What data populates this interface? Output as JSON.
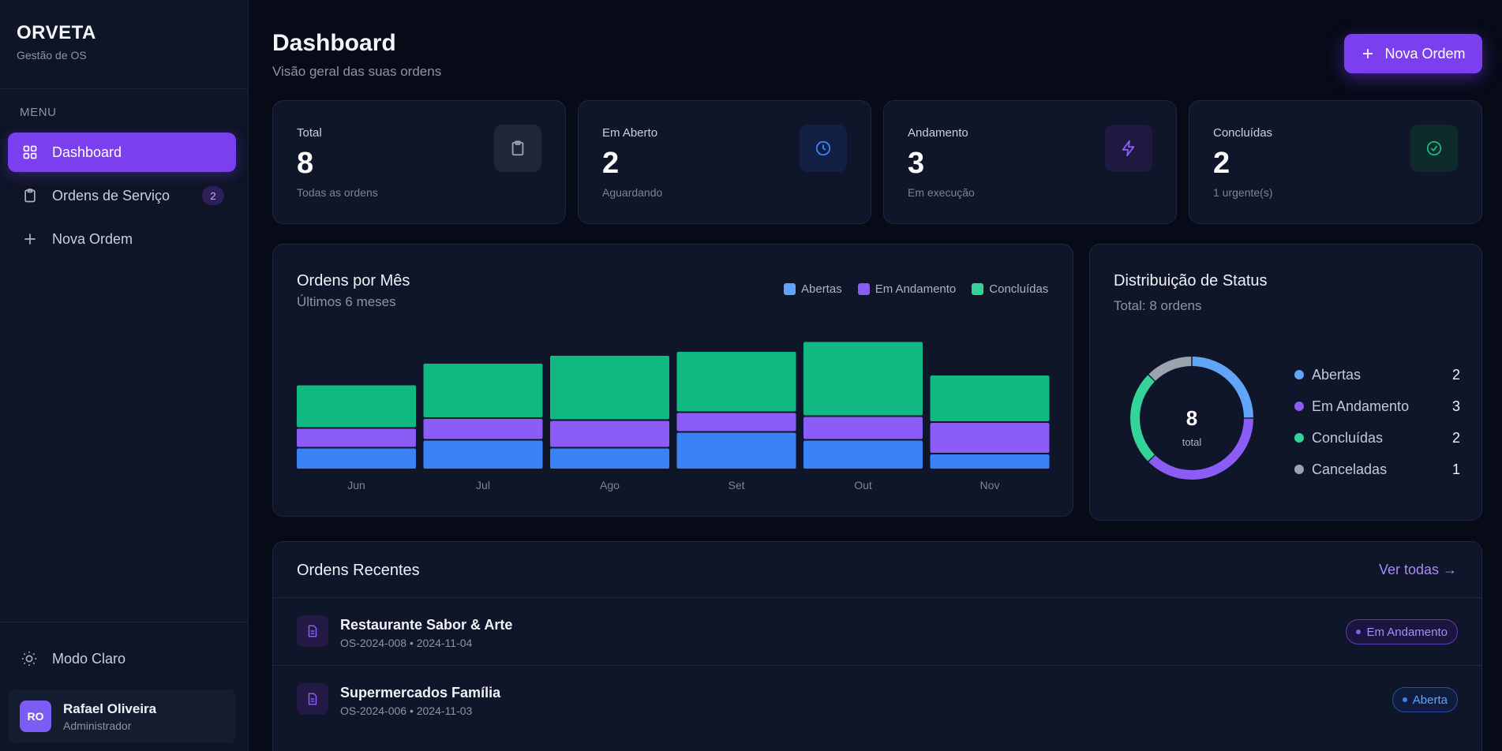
{
  "brand": {
    "title": "ORVETA",
    "subtitle": "Gestão de OS"
  },
  "sidebar": {
    "menu_label": "MENU",
    "items": [
      {
        "label": "Dashboard",
        "icon": "grid-icon",
        "active": true
      },
      {
        "label": "Ordens de Serviço",
        "icon": "clipboard-icon",
        "badge": "2"
      },
      {
        "label": "Nova Ordem",
        "icon": "plus-icon"
      }
    ],
    "theme_toggle": "Modo Claro",
    "user": {
      "initials": "RO",
      "name": "Rafael Oliveira",
      "role": "Administrador"
    }
  },
  "header": {
    "title": "Dashboard",
    "subtitle": "Visão geral das suas ordens",
    "new_button": "Nova Ordem"
  },
  "stats": [
    {
      "label": "Total",
      "value": "8",
      "desc": "Todas as ordens",
      "icon": "clipboard-icon",
      "color": "#9aa3b5",
      "bg": "#1e2638"
    },
    {
      "label": "Em Aberto",
      "value": "2",
      "desc": "Aguardando",
      "icon": "clock-icon",
      "color": "#3b82f6",
      "bg": "#131f42"
    },
    {
      "label": "Andamento",
      "value": "3",
      "desc": "Em execução",
      "icon": "bolt-icon",
      "color": "#8b5cf6",
      "bg": "#1f1840"
    },
    {
      "label": "Concluídas",
      "value": "2",
      "desc": "1 urgente(s)",
      "icon": "check-circle-icon",
      "color": "#10b981",
      "bg": "#0f2a2a"
    }
  ],
  "chart_data": {
    "type": "bar",
    "title": "Ordens por Mês",
    "subtitle": "Últimos 6 meses",
    "stacked": true,
    "categories": [
      "Jun",
      "Jul",
      "Ago",
      "Set",
      "Out",
      "Nov"
    ],
    "series": [
      {
        "name": "Abertas",
        "color": "#3b82f6",
        "values": [
          1.1,
          1.5,
          1.1,
          1.9,
          1.5,
          0.8
        ]
      },
      {
        "name": "Em Andamento",
        "color": "#8b5cf6",
        "values": [
          1.0,
          1.1,
          1.4,
          1.0,
          1.2,
          1.6
        ]
      },
      {
        "name": "Concluídas",
        "color": "#10b981",
        "values": [
          2.2,
          2.8,
          3.3,
          3.1,
          3.8,
          2.4
        ]
      }
    ],
    "legend": "top-right"
  },
  "status_distribution": {
    "title": "Distribuição de Status",
    "subtitle": "Total: 8 ordens",
    "center_value": "8",
    "center_label": "total",
    "items": [
      {
        "label": "Abertas",
        "value": 2,
        "color": "#60a5fa"
      },
      {
        "label": "Em Andamento",
        "value": 3,
        "color": "#8b5cf6"
      },
      {
        "label": "Concluídas",
        "value": 2,
        "color": "#34d399"
      },
      {
        "label": "Canceladas",
        "value": 1,
        "color": "#9ca3af"
      }
    ]
  },
  "recent": {
    "title": "Ordens Recentes",
    "view_all": "Ver todas →",
    "rows": [
      {
        "name": "Restaurante Sabor & Arte",
        "meta": "OS-2024-008 • 2024-11-04",
        "status": "Em Andamento",
        "status_color": "#a78bfa",
        "status_bg": "#1c1540",
        "status_border": "#5b3fb0"
      },
      {
        "name": "Supermercados Família",
        "meta": "OS-2024-006 • 2024-11-03",
        "status": "Aberta",
        "status_color": "#60a5fa",
        "status_bg": "#0f1c3d",
        "status_border": "#2b4f9c"
      }
    ]
  }
}
